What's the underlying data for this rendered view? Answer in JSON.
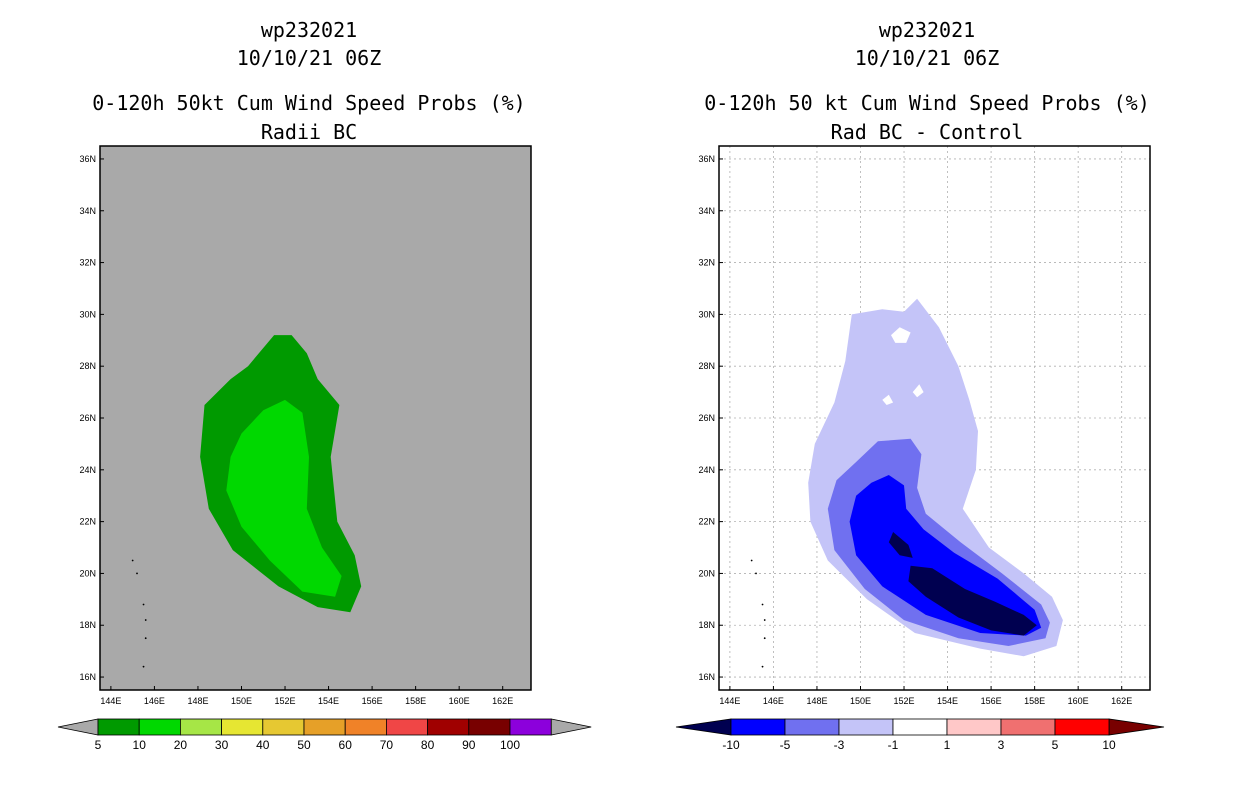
{
  "chart_data": [
    {
      "type": "map-contour",
      "id": "panel1",
      "title_lines": [
        "wp232021",
        "10/10/21 06Z",
        "0-120h 50kt Cum Wind Speed Probs (%)",
        "Radii BC"
      ],
      "lon_range": [
        143.5,
        163.3
      ],
      "lat_range": [
        15.5,
        36.5
      ],
      "x_ticks": [
        "144E",
        "146E",
        "148E",
        "150E",
        "152E",
        "154E",
        "156E",
        "158E",
        "160E",
        "162E"
      ],
      "y_ticks": [
        "16N",
        "18N",
        "20N",
        "22N",
        "24N",
        "26N",
        "28N",
        "30N",
        "32N",
        "34N",
        "36N"
      ],
      "background_color": "#a9a9a9",
      "gridlines": false,
      "contours": [
        {
          "level": "5-10",
          "color": "#009a00",
          "polygon": [
            [
              150.3,
              28.0
            ],
            [
              151.5,
              29.2
            ],
            [
              152.3,
              29.2
            ],
            [
              153.0,
              28.5
            ],
            [
              153.5,
              27.5
            ],
            [
              154.5,
              26.5
            ],
            [
              154.1,
              24.5
            ],
            [
              154.4,
              22.0
            ],
            [
              155.2,
              20.7
            ],
            [
              155.5,
              19.5
            ],
            [
              155.0,
              18.5
            ],
            [
              153.5,
              18.7
            ],
            [
              151.7,
              19.5
            ],
            [
              149.6,
              20.9
            ],
            [
              148.5,
              22.5
            ],
            [
              148.1,
              24.5
            ],
            [
              148.3,
              26.5
            ],
            [
              149.5,
              27.5
            ]
          ]
        },
        {
          "level": "10-20",
          "color": "#00d800",
          "polygon": [
            [
              150.0,
              25.4
            ],
            [
              151.0,
              26.3
            ],
            [
              152.0,
              26.7
            ],
            [
              152.8,
              26.2
            ],
            [
              153.1,
              24.5
            ],
            [
              153.0,
              22.5
            ],
            [
              153.7,
              21.0
            ],
            [
              154.6,
              19.9
            ],
            [
              154.3,
              19.1
            ],
            [
              152.8,
              19.3
            ],
            [
              151.3,
              20.5
            ],
            [
              150.0,
              21.8
            ],
            [
              149.3,
              23.2
            ],
            [
              149.5,
              24.5
            ]
          ]
        }
      ],
      "islands": [
        [
          145.0,
          20.5
        ],
        [
          145.2,
          20.0
        ],
        [
          145.5,
          18.8
        ],
        [
          145.6,
          18.2
        ],
        [
          145.6,
          17.5
        ],
        [
          145.5,
          16.4
        ]
      ],
      "colorbar": {
        "labels": [
          "5",
          "10",
          "20",
          "30",
          "40",
          "50",
          "60",
          "70",
          "80",
          "90",
          "100"
        ],
        "colors": [
          "#009a00",
          "#00d800",
          "#a6e646",
          "#e6e632",
          "#e6c832",
          "#e6a028",
          "#f08228",
          "#f04646",
          "#a00000",
          "#780000",
          "#8c00dc"
        ],
        "under_color": "#a9a9a9",
        "over_color": "#a9a9a9"
      }
    },
    {
      "type": "map-contour",
      "id": "panel2",
      "title_lines": [
        "wp232021",
        "10/10/21 06Z",
        "0-120h 50 kt Cum Wind Speed Probs (%)",
        "Rad BC - Control"
      ],
      "lon_range": [
        143.5,
        163.3
      ],
      "lat_range": [
        15.5,
        36.5
      ],
      "x_ticks": [
        "144E",
        "146E",
        "148E",
        "150E",
        "152E",
        "154E",
        "156E",
        "158E",
        "160E",
        "162E"
      ],
      "y_ticks": [
        "16N",
        "18N",
        "20N",
        "22N",
        "24N",
        "26N",
        "28N",
        "30N",
        "32N",
        "34N",
        "36N"
      ],
      "background_color": "#ffffff",
      "gridlines": true,
      "contours": [
        {
          "level": "-3 to -1",
          "color": "#c4c4f8",
          "polygon": [
            [
              149.6,
              30.0
            ],
            [
              151.0,
              30.2
            ],
            [
              152.0,
              30.1
            ],
            [
              152.6,
              30.6
            ],
            [
              153.6,
              29.5
            ],
            [
              154.5,
              28.0
            ],
            [
              155.0,
              26.7
            ],
            [
              155.4,
              25.5
            ],
            [
              155.3,
              24.0
            ],
            [
              154.7,
              22.5
            ],
            [
              155.9,
              21.0
            ],
            [
              157.5,
              20.0
            ],
            [
              158.8,
              19.1
            ],
            [
              159.3,
              18.2
            ],
            [
              159.0,
              17.2
            ],
            [
              157.5,
              16.8
            ],
            [
              155.5,
              17.1
            ],
            [
              152.5,
              17.7
            ],
            [
              150.3,
              19.0
            ],
            [
              148.5,
              20.5
            ],
            [
              147.7,
              22.0
            ],
            [
              147.6,
              23.5
            ],
            [
              147.9,
              25.0
            ],
            [
              148.8,
              26.6
            ],
            [
              149.3,
              28.2
            ]
          ]
        },
        {
          "level": "-5 to -3",
          "color": "#7070f0",
          "polygon": [
            [
              149.8,
              24.3
            ],
            [
              150.8,
              25.1
            ],
            [
              152.3,
              25.2
            ],
            [
              152.8,
              24.6
            ],
            [
              152.6,
              23.3
            ],
            [
              153.0,
              22.3
            ],
            [
              154.6,
              21.2
            ],
            [
              156.5,
              20.0
            ],
            [
              158.3,
              18.8
            ],
            [
              158.7,
              18.1
            ],
            [
              158.5,
              17.5
            ],
            [
              156.8,
              17.2
            ],
            [
              154.5,
              17.5
            ],
            [
              152.0,
              18.2
            ],
            [
              150.2,
              19.4
            ],
            [
              148.8,
              20.9
            ],
            [
              148.5,
              22.5
            ],
            [
              148.9,
              23.6
            ]
          ]
        },
        {
          "level": "-10 to -5",
          "color": "#0000ff",
          "polygon": [
            [
              150.5,
              23.5
            ],
            [
              151.3,
              23.8
            ],
            [
              152.0,
              23.4
            ],
            [
              152.1,
              22.5
            ],
            [
              152.9,
              21.7
            ],
            [
              154.3,
              20.8
            ],
            [
              156.3,
              19.8
            ],
            [
              158.0,
              18.6
            ],
            [
              158.3,
              17.9
            ],
            [
              157.6,
              17.6
            ],
            [
              155.5,
              17.7
            ],
            [
              153.0,
              18.4
            ],
            [
              151.0,
              19.5
            ],
            [
              149.8,
              20.7
            ],
            [
              149.5,
              22.0
            ],
            [
              149.8,
              23.0
            ]
          ]
        },
        {
          "level": "< -10",
          "color": "#000050",
          "polygon": [
            [
              152.3,
              20.3
            ],
            [
              153.3,
              20.2
            ],
            [
              154.8,
              19.4
            ],
            [
              156.2,
              18.9
            ],
            [
              157.5,
              18.4
            ],
            [
              158.1,
              18.0
            ],
            [
              157.5,
              17.6
            ],
            [
              156.0,
              17.8
            ],
            [
              154.5,
              18.3
            ],
            [
              153.0,
              19.1
            ],
            [
              152.2,
              19.7
            ]
          ]
        },
        {
          "level": "< -10",
          "color": "#000050",
          "polygon": [
            [
              151.5,
              21.6
            ],
            [
              152.2,
              21.1
            ],
            [
              152.4,
              20.6
            ],
            [
              151.8,
              20.7
            ],
            [
              151.3,
              21.2
            ]
          ]
        }
      ],
      "holes": [
        [
          [
            151.4,
            29.2
          ],
          [
            151.8,
            29.5
          ],
          [
            152.3,
            29.3
          ],
          [
            152.1,
            28.9
          ],
          [
            151.6,
            28.9
          ]
        ],
        [
          [
            151.0,
            26.7
          ],
          [
            151.3,
            26.9
          ],
          [
            151.5,
            26.6
          ],
          [
            151.2,
            26.5
          ]
        ],
        [
          [
            152.4,
            27.0
          ],
          [
            152.7,
            27.3
          ],
          [
            152.9,
            27.0
          ],
          [
            152.6,
            26.8
          ]
        ]
      ],
      "islands": [
        [
          145.0,
          20.5
        ],
        [
          145.2,
          20.0
        ],
        [
          145.5,
          18.8
        ],
        [
          145.6,
          18.2
        ],
        [
          145.6,
          17.5
        ],
        [
          145.5,
          16.4
        ]
      ],
      "colorbar": {
        "labels": [
          "-10",
          "-5",
          "-3",
          "-1",
          "1",
          "3",
          "5",
          "10"
        ],
        "colors": [
          "#0000ff",
          "#7070f0",
          "#c4c4f8",
          "#ffffff",
          "#ffc8c8",
          "#f07070",
          "#ff0000"
        ],
        "under_color": "#000050",
        "over_color": "#780000"
      }
    }
  ]
}
